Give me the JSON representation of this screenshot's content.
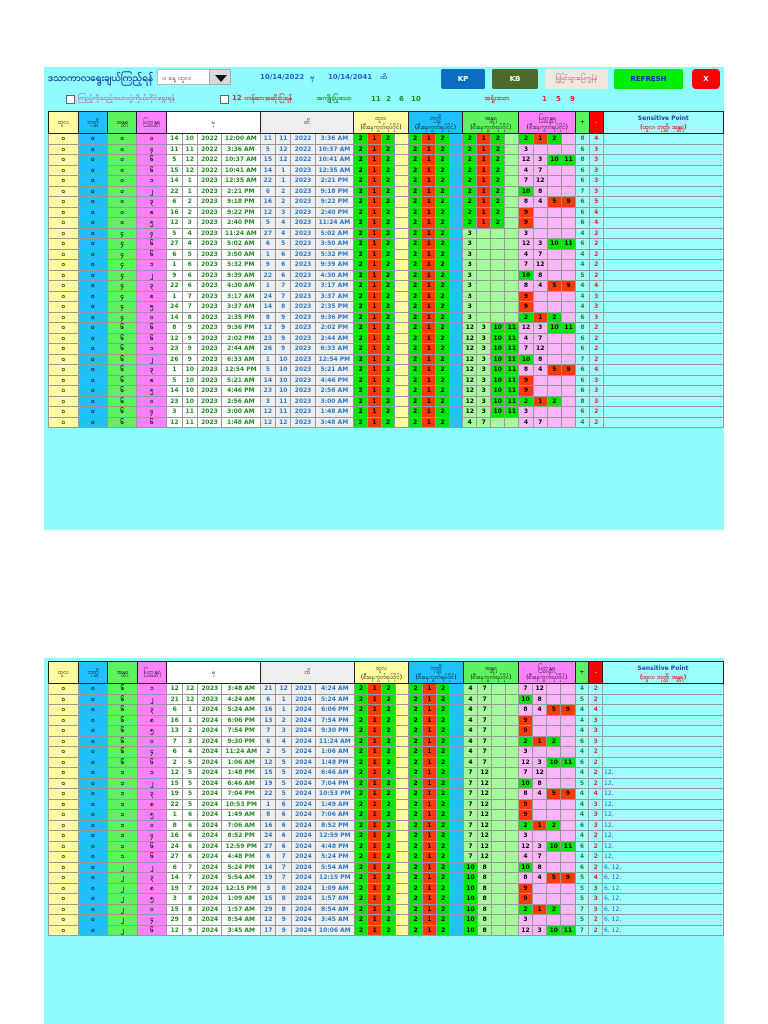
{
  "toolbar": {
    "title": "ဒသာကာလရွေးချယ်ကြည့်ရန်",
    "period_select": "၀ နေ့ ထူလ",
    "start_date": "10/14/2022",
    "start_suffix": "မှ",
    "end_date": "10/14/2041",
    "end_suffix": "ထိ",
    "buttons": {
      "kp": "KP",
      "kb": "KB",
      "back": "ပြုပြင်သွားပြေကွန်နံ",
      "refresh": "REFRESH",
      "close": "X"
    },
    "checkbox1_label": "ကြည့်လိုသည့်ဒသာတွဲကိုယ်တိုင်ရွေးရန်",
    "checkbox2_label": "12 တန်ဆာအဆိုးပြရန်",
    "good_label": "အကျိုးပြုဒသာ",
    "good_numbers": [
      "11",
      "2",
      "6",
      "10"
    ],
    "bad_label": "အရှုံးဒသာ",
    "bad_numbers": [
      "1",
      "5",
      "9"
    ]
  },
  "table": {
    "headers": {
      "c1": "ထူလ",
      "c2": "ဘုတ္တိ",
      "c3": "အန္တရ",
      "c4": "ပြတ္တန္တရ",
      "from": "မှ",
      "to": "ထိ",
      "g1": "ထူလ",
      "g2": "ဘုတ္တိ",
      "g3": "အန္တရ",
      "g4": "ပြတ္တန္တရ",
      "sub": "(စီးနေကွတ်ရပ်ဝိုင်)",
      "plus": "+",
      "minus": "-",
      "sp_title": "Sensitive Point",
      "sp_sub": "(ထူလ၊ ဘုတ္တိ၊ အန္တရ)"
    }
  },
  "table1_rows": [
    {
      "a": "၀",
      "b": "၀",
      "c": "၀",
      "d": "၀",
      "f": [
        "14",
        "10",
        "2022",
        "12:00 AM"
      ],
      "t": [
        "11",
        "11",
        "2022",
        "3:36 AM"
      ],
      "p4": "A",
      "plus": "8",
      "minus": "4",
      "sp": ""
    },
    {
      "a": "၀",
      "b": "၀",
      "c": "၀",
      "d": "၄",
      "f": [
        "11",
        "11",
        "2022",
        "3:36 AM"
      ],
      "t": [
        "5",
        "12",
        "2022",
        "10:37 AM"
      ],
      "p4": "3",
      "plus": "6",
      "minus": "3",
      "sp": ""
    },
    {
      "a": "၀",
      "b": "၀",
      "c": "၀",
      "d": "၆",
      "f": [
        "5",
        "12",
        "2022",
        "10:37 AM"
      ],
      "t": [
        "15",
        "12",
        "2022",
        "10:41 AM"
      ],
      "p4": "B",
      "plus": "8",
      "minus": "3",
      "sp": ""
    },
    {
      "a": "၀",
      "b": "၀",
      "c": "၀",
      "d": "၆",
      "f": [
        "15",
        "12",
        "2022",
        "10:41 AM"
      ],
      "t": [
        "14",
        "1",
        "2023",
        "12:35 AM"
      ],
      "p4": "47",
      "plus": "6",
      "minus": "3",
      "sp": ""
    },
    {
      "a": "၀",
      "b": "၀",
      "c": "၀",
      "d": "၁",
      "f": [
        "14",
        "1",
        "2023",
        "12:35 AM"
      ],
      "t": [
        "22",
        "1",
        "2023",
        "2:21 PM"
      ],
      "p4": "712",
      "plus": "6",
      "minus": "3",
      "sp": ""
    },
    {
      "a": "၀",
      "b": "၀",
      "c": "၀",
      "d": "၂",
      "f": [
        "22",
        "1",
        "2023",
        "2:21 PM"
      ],
      "t": [
        "6",
        "2",
        "2023",
        "9:18 PM"
      ],
      "p4": "108",
      "plus": "7",
      "minus": "3",
      "sp": ""
    },
    {
      "a": "၀",
      "b": "၀",
      "c": "၀",
      "d": "၃",
      "f": [
        "6",
        "2",
        "2023",
        "9:18 PM"
      ],
      "t": [
        "16",
        "2",
        "2023",
        "9:22 PM"
      ],
      "p4": "C",
      "plus": "6",
      "minus": "5",
      "sp": ""
    },
    {
      "a": "၀",
      "b": "၀",
      "c": "၀",
      "d": "၈",
      "f": [
        "16",
        "2",
        "2023",
        "9:22 PM"
      ],
      "t": [
        "12",
        "3",
        "2023",
        "2:40 PM"
      ],
      "p4": "9",
      "plus": "6",
      "minus": "4",
      "sp": ""
    },
    {
      "a": "၀",
      "b": "၀",
      "c": "၀",
      "d": "၅",
      "f": [
        "12",
        "3",
        "2023",
        "2:40 PM"
      ],
      "t": [
        "5",
        "4",
        "2023",
        "11:24 AM"
      ],
      "p4": "9",
      "plus": "6",
      "minus": "4",
      "sp": ""
    },
    {
      "a": "၀",
      "b": "၀",
      "c": "၄",
      "d": "၄",
      "f": [
        "5",
        "4",
        "2023",
        "11:24 AM"
      ],
      "t": [
        "27",
        "4",
        "2023",
        "5:02 AM"
      ],
      "p3": "3",
      "p4": "3",
      "plus": "4",
      "minus": "2",
      "sp": ""
    },
    {
      "a": "၀",
      "b": "၀",
      "c": "၄",
      "d": "၆",
      "f": [
        "27",
        "4",
        "2023",
        "5:02 AM"
      ],
      "t": [
        "6",
        "5",
        "2023",
        "3:50 AM"
      ],
      "p3": "3",
      "p4": "B",
      "plus": "6",
      "minus": "2",
      "sp": ""
    },
    {
      "a": "၀",
      "b": "၀",
      "c": "၄",
      "d": "၆",
      "f": [
        "6",
        "5",
        "2023",
        "3:50 AM"
      ],
      "t": [
        "1",
        "6",
        "2023",
        "5:32 PM"
      ],
      "p3": "3",
      "p4": "47",
      "plus": "4",
      "minus": "2",
      "sp": ""
    },
    {
      "a": "၀",
      "b": "၀",
      "c": "၄",
      "d": "၁",
      "f": [
        "1",
        "6",
        "2023",
        "5:32 PM"
      ],
      "t": [
        "9",
        "6",
        "2023",
        "9:39 AM"
      ],
      "p3": "3",
      "p4": "712",
      "plus": "4",
      "minus": "2",
      "sp": ""
    },
    {
      "a": "၀",
      "b": "၀",
      "c": "၄",
      "d": "၂",
      "f": [
        "9",
        "6",
        "2023",
        "9:39 AM"
      ],
      "t": [
        "22",
        "6",
        "2023",
        "4:30 AM"
      ],
      "p3": "3",
      "p4": "108",
      "plus": "5",
      "minus": "2",
      "sp": ""
    },
    {
      "a": "၀",
      "b": "၀",
      "c": "၄",
      "d": "၃",
      "f": [
        "22",
        "6",
        "2023",
        "4:30 AM"
      ],
      "t": [
        "1",
        "7",
        "2023",
        "3:17 AM"
      ],
      "p3": "3",
      "p4": "C",
      "plus": "4",
      "minus": "4",
      "sp": ""
    },
    {
      "a": "၀",
      "b": "၀",
      "c": "၄",
      "d": "၈",
      "f": [
        "1",
        "7",
        "2023",
        "3:17 AM"
      ],
      "t": [
        "24",
        "7",
        "2023",
        "3:37 AM"
      ],
      "p3": "3",
      "p4": "9",
      "plus": "4",
      "minus": "3",
      "sp": ""
    },
    {
      "a": "၀",
      "b": "၀",
      "c": "၄",
      "d": "၅",
      "f": [
        "24",
        "7",
        "2023",
        "3:37 AM"
      ],
      "t": [
        "14",
        "8",
        "2023",
        "2:35 PM"
      ],
      "p3": "3",
      "p4": "9",
      "plus": "4",
      "minus": "3",
      "sp": ""
    },
    {
      "a": "၀",
      "b": "၀",
      "c": "၄",
      "d": "၀",
      "f": [
        "14",
        "8",
        "2023",
        "2:35 PM"
      ],
      "t": [
        "8",
        "9",
        "2023",
        "9:36 PM"
      ],
      "p3": "3",
      "p4": "A",
      "plus": "6",
      "minus": "3",
      "sp": ""
    },
    {
      "a": "၀",
      "b": "၀",
      "c": "၆",
      "d": "၆",
      "f": [
        "8",
        "9",
        "2023",
        "9:36 PM"
      ],
      "t": [
        "12",
        "9",
        "2023",
        "2:02 PM"
      ],
      "p3": "B",
      "p4": "B",
      "plus": "8",
      "minus": "2",
      "sp": ""
    },
    {
      "a": "၀",
      "b": "၀",
      "c": "၆",
      "d": "၆",
      "f": [
        "12",
        "9",
        "2023",
        "2:02 PM"
      ],
      "t": [
        "23",
        "9",
        "2023",
        "2:44 AM"
      ],
      "p3": "B",
      "p4": "47",
      "plus": "6",
      "minus": "2",
      "sp": ""
    },
    {
      "a": "၀",
      "b": "၀",
      "c": "၆",
      "d": "၁",
      "f": [
        "23",
        "9",
        "2023",
        "2:44 AM"
      ],
      "t": [
        "26",
        "9",
        "2023",
        "6:33 AM"
      ],
      "p3": "B",
      "p4": "712",
      "plus": "6",
      "minus": "2",
      "sp": ""
    },
    {
      "a": "၀",
      "b": "၀",
      "c": "၆",
      "d": "၂",
      "f": [
        "26",
        "9",
        "2023",
        "6:33 AM"
      ],
      "t": [
        "1",
        "10",
        "2023",
        "12:54 PM"
      ],
      "p3": "B",
      "p4": "108",
      "plus": "7",
      "minus": "2",
      "sp": ""
    },
    {
      "a": "၀",
      "b": "၀",
      "c": "၆",
      "d": "၃",
      "f": [
        "1",
        "10",
        "2023",
        "12:54 PM"
      ],
      "t": [
        "5",
        "10",
        "2023",
        "5:21 AM"
      ],
      "p3": "B",
      "p4": "C",
      "plus": "6",
      "minus": "4",
      "sp": ""
    },
    {
      "a": "၀",
      "b": "၀",
      "c": "၆",
      "d": "၈",
      "f": [
        "5",
        "10",
        "2023",
        "5:21 AM"
      ],
      "t": [
        "14",
        "10",
        "2023",
        "4:46 PM"
      ],
      "p3": "B",
      "p4": "9",
      "plus": "6",
      "minus": "3",
      "sp": ""
    },
    {
      "a": "၀",
      "b": "၀",
      "c": "၆",
      "d": "၅",
      "f": [
        "14",
        "10",
        "2023",
        "4:46 PM"
      ],
      "t": [
        "23",
        "10",
        "2023",
        "2:56 AM"
      ],
      "p3": "B",
      "p4": "9",
      "plus": "6",
      "minus": "3",
      "sp": ""
    },
    {
      "a": "၀",
      "b": "၀",
      "c": "၆",
      "d": "၀",
      "f": [
        "23",
        "10",
        "2023",
        "2:56 AM"
      ],
      "t": [
        "3",
        "11",
        "2023",
        "3:00 AM"
      ],
      "p3": "B",
      "p4": "A",
      "plus": "8",
      "minus": "3",
      "sp": ""
    },
    {
      "a": "၀",
      "b": "၀",
      "c": "၆",
      "d": "၄",
      "f": [
        "3",
        "11",
        "2023",
        "3:00 AM"
      ],
      "t": [
        "12",
        "11",
        "2023",
        "1:48 AM"
      ],
      "p3": "B",
      "p4": "3",
      "plus": "6",
      "minus": "2",
      "sp": ""
    },
    {
      "a": "၀",
      "b": "၀",
      "c": "၆",
      "d": "၆",
      "f": [
        "12",
        "11",
        "2023",
        "1:48 AM"
      ],
      "t": [
        "12",
        "12",
        "2023",
        "3:48 AM"
      ],
      "p3": "47",
      "p4": "47",
      "plus": "4",
      "minus": "2",
      "sp": ""
    }
  ],
  "table2_rows": [
    {
      "a": "၀",
      "b": "၀",
      "c": "၆",
      "d": "၁",
      "f": [
        "12",
        "12",
        "2023",
        "3:48 AM"
      ],
      "t": [
        "21",
        "12",
        "2023",
        "4:24 AM"
      ],
      "p3": "47",
      "p4": "712",
      "plus": "4",
      "minus": "2",
      "sp": ""
    },
    {
      "a": "၀",
      "b": "၀",
      "c": "၆",
      "d": "၂",
      "f": [
        "21",
        "12",
        "2023",
        "4:24 AM"
      ],
      "t": [
        "6",
        "1",
        "2024",
        "5:24 AM"
      ],
      "p3": "47",
      "p4": "108",
      "plus": "5",
      "minus": "2",
      "sp": ""
    },
    {
      "a": "၀",
      "b": "၀",
      "c": "၆",
      "d": "၃",
      "f": [
        "6",
        "1",
        "2024",
        "5:24 AM"
      ],
      "t": [
        "16",
        "1",
        "2024",
        "6:06 PM"
      ],
      "p3": "47",
      "p4": "C",
      "plus": "4",
      "minus": "4",
      "sp": ""
    },
    {
      "a": "၀",
      "b": "၀",
      "c": "၆",
      "d": "၈",
      "f": [
        "16",
        "1",
        "2024",
        "6:06 PM"
      ],
      "t": [
        "13",
        "2",
        "2024",
        "7:54 PM"
      ],
      "p3": "47",
      "p4": "9",
      "plus": "4",
      "minus": "3",
      "sp": ""
    },
    {
      "a": "၀",
      "b": "၀",
      "c": "၆",
      "d": "၅",
      "f": [
        "13",
        "2",
        "2024",
        "7:54 PM"
      ],
      "t": [
        "7",
        "3",
        "2024",
        "9:30 PM"
      ],
      "p3": "47",
      "p4": "9",
      "plus": "4",
      "minus": "3",
      "sp": ""
    },
    {
      "a": "၀",
      "b": "၀",
      "c": "၆",
      "d": "၀",
      "f": [
        "7",
        "3",
        "2024",
        "9:30 PM"
      ],
      "t": [
        "6",
        "4",
        "2024",
        "11:24 AM"
      ],
      "p3": "47",
      "p4": "A",
      "plus": "6",
      "minus": "3",
      "sp": ""
    },
    {
      "a": "၀",
      "b": "၀",
      "c": "၆",
      "d": "၄",
      "f": [
        "6",
        "4",
        "2024",
        "11:24 AM"
      ],
      "t": [
        "2",
        "5",
        "2024",
        "1:06 AM"
      ],
      "p3": "47",
      "p4": "3",
      "plus": "4",
      "minus": "2",
      "sp": ""
    },
    {
      "a": "၀",
      "b": "၀",
      "c": "၆",
      "d": "၆",
      "f": [
        "2",
        "5",
        "2024",
        "1:06 AM"
      ],
      "t": [
        "12",
        "5",
        "2024",
        "1:48 PM"
      ],
      "p3": "47",
      "p4": "B",
      "plus": "6",
      "minus": "2",
      "sp": ""
    },
    {
      "a": "၀",
      "b": "၀",
      "c": "၁",
      "d": "၁",
      "f": [
        "12",
        "5",
        "2024",
        "1:48 PM"
      ],
      "t": [
        "15",
        "5",
        "2024",
        "6:46 AM"
      ],
      "p3": "712",
      "p4": "712",
      "plus": "4",
      "minus": "2",
      "sp": "12,"
    },
    {
      "a": "၀",
      "b": "၀",
      "c": "၁",
      "d": "၂",
      "f": [
        "15",
        "5",
        "2024",
        "6:46 AM"
      ],
      "t": [
        "19",
        "5",
        "2024",
        "7:04 PM"
      ],
      "p3": "712",
      "p4": "108",
      "plus": "5",
      "minus": "2",
      "sp": "12,"
    },
    {
      "a": "၀",
      "b": "၀",
      "c": "၁",
      "d": "၃",
      "f": [
        "19",
        "5",
        "2024",
        "7:04 PM"
      ],
      "t": [
        "22",
        "5",
        "2024",
        "10:53 PM"
      ],
      "p3": "712",
      "p4": "C",
      "plus": "4",
      "minus": "4",
      "sp": "12,"
    },
    {
      "a": "၀",
      "b": "၀",
      "c": "၁",
      "d": "၈",
      "f": [
        "22",
        "5",
        "2024",
        "10:53 PM"
      ],
      "t": [
        "1",
        "6",
        "2024",
        "1:49 AM"
      ],
      "p3": "712",
      "p4": "9",
      "plus": "4",
      "minus": "3",
      "sp": "12,"
    },
    {
      "a": "၀",
      "b": "၀",
      "c": "၁",
      "d": "၅",
      "f": [
        "1",
        "6",
        "2024",
        "1:49 AM"
      ],
      "t": [
        "8",
        "6",
        "2024",
        "7:06 AM"
      ],
      "p3": "712",
      "p4": "9",
      "plus": "4",
      "minus": "3",
      "sp": "12,"
    },
    {
      "a": "၀",
      "b": "၀",
      "c": "၁",
      "d": "၀",
      "f": [
        "8",
        "6",
        "2024",
        "7:06 AM"
      ],
      "t": [
        "16",
        "6",
        "2024",
        "8:52 PM"
      ],
      "p3": "712",
      "p4": "A",
      "plus": "6",
      "minus": "3",
      "sp": "12,"
    },
    {
      "a": "၀",
      "b": "၀",
      "c": "၁",
      "d": "၄",
      "f": [
        "16",
        "6",
        "2024",
        "8:52 PM"
      ],
      "t": [
        "24",
        "6",
        "2024",
        "12:59 PM"
      ],
      "p3": "712",
      "p4": "3",
      "plus": "4",
      "minus": "2",
      "sp": "12,"
    },
    {
      "a": "၀",
      "b": "၀",
      "c": "၁",
      "d": "၆",
      "f": [
        "24",
        "6",
        "2024",
        "12:59 PM"
      ],
      "t": [
        "27",
        "6",
        "2024",
        "4:48 PM"
      ],
      "p3": "712",
      "p4": "B",
      "plus": "6",
      "minus": "2",
      "sp": "12,"
    },
    {
      "a": "၀",
      "b": "၀",
      "c": "၁",
      "d": "၆",
      "f": [
        "27",
        "6",
        "2024",
        "4:48 PM"
      ],
      "t": [
        "6",
        "7",
        "2024",
        "5:24 PM"
      ],
      "p3": "712",
      "p4": "47",
      "plus": "4",
      "minus": "2",
      "sp": "12,"
    },
    {
      "a": "၀",
      "b": "၀",
      "c": "၂",
      "d": "၂",
      "f": [
        "6",
        "7",
        "2024",
        "5:24 PM"
      ],
      "t": [
        "14",
        "7",
        "2024",
        "5:54 AM"
      ],
      "p3": "108",
      "p4": "108",
      "plus": "6",
      "minus": "2",
      "sp": "6, 12,"
    },
    {
      "a": "၀",
      "b": "၀",
      "c": "၂",
      "d": "၃",
      "f": [
        "14",
        "7",
        "2024",
        "5:54 AM"
      ],
      "t": [
        "19",
        "7",
        "2024",
        "12:15 PM"
      ],
      "p3": "108",
      "p4": "C",
      "plus": "5",
      "minus": "4",
      "sp": "6, 12,"
    },
    {
      "a": "၀",
      "b": "၀",
      "c": "၂",
      "d": "၈",
      "f": [
        "19",
        "7",
        "2024",
        "12:15 PM"
      ],
      "t": [
        "3",
        "8",
        "2024",
        "1:09 AM"
      ],
      "p3": "108",
      "p4": "9",
      "plus": "5",
      "minus": "3",
      "sp": "6, 12,"
    },
    {
      "a": "၀",
      "b": "၀",
      "c": "၂",
      "d": "၅",
      "f": [
        "3",
        "8",
        "2024",
        "1:09 AM"
      ],
      "t": [
        "15",
        "8",
        "2024",
        "1:57 AM"
      ],
      "p3": "108",
      "p4": "9",
      "plus": "5",
      "minus": "3",
      "sp": "6, 12,"
    },
    {
      "a": "၀",
      "b": "၀",
      "c": "၂",
      "d": "၀",
      "f": [
        "15",
        "8",
        "2024",
        "1:57 AM"
      ],
      "t": [
        "29",
        "8",
        "2024",
        "8:54 AM"
      ],
      "p3": "108",
      "p4": "A",
      "plus": "7",
      "minus": "3",
      "sp": "6, 12,"
    },
    {
      "a": "၀",
      "b": "၀",
      "c": "၂",
      "d": "၄",
      "f": [
        "29",
        "8",
        "2024",
        "8:54 AM"
      ],
      "t": [
        "12",
        "9",
        "2024",
        "3:45 AM"
      ],
      "p3": "108",
      "p4": "3",
      "plus": "5",
      "minus": "2",
      "sp": "6, 12,"
    },
    {
      "a": "၀",
      "b": "၀",
      "c": "၂",
      "d": "၆",
      "f": [
        "12",
        "9",
        "2024",
        "3:45 AM"
      ],
      "t": [
        "17",
        "9",
        "2024",
        "10:06 AM"
      ],
      "p3": "108",
      "p4": "B",
      "plus": "7",
      "minus": "2",
      "sp": "6, 12,"
    }
  ],
  "pattern_key": {
    "A": [
      "2:G",
      "1:R",
      "2:G",
      ""
    ],
    "B": [
      "12",
      "3",
      "10:G",
      "11:G"
    ],
    "C": [
      "8",
      "4",
      "5:R",
      "9:R"
    ],
    "3": [
      "3",
      "",
      "",
      ""
    ],
    "47": [
      "4",
      "7",
      "",
      ""
    ],
    "712": [
      "7",
      "12",
      "",
      ""
    ],
    "108": [
      "10:G",
      "8",
      "",
      ""
    ],
    "9": [
      "9:R",
      "",
      "",
      ""
    ]
  },
  "colors": {
    "panel_bg": "#8ffdff",
    "col_thula": "#fffba0",
    "col_bhutti": "#21c0ff",
    "col_antara": "#5ef25e",
    "col_pratyantara": "#fb80fb",
    "good": "#00e600",
    "bad": "#ff3b00",
    "kp_button": "#0a6fc2",
    "kb_button": "#4e6a2a",
    "refresh_button": "#00ee00",
    "close_button": "#ff0000"
  }
}
